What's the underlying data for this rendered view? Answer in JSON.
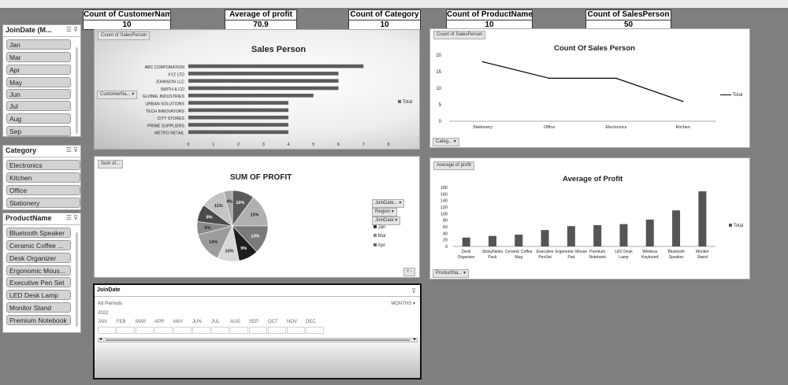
{
  "stats": [
    {
      "label": "Count of CustomerName",
      "value": "10"
    },
    {
      "label": "Average of profit",
      "value": "70.9"
    },
    {
      "label": "Count of Category",
      "value": "10"
    },
    {
      "label": "Count of ProductName",
      "value": "10"
    },
    {
      "label": "Count of SalesPerson",
      "value": "50"
    }
  ],
  "slicers": {
    "joindate": {
      "title": "JoinDate (M...",
      "items": [
        "Jan",
        "Mar",
        "Apr",
        "May",
        "Jun",
        "Jul",
        "Aug",
        "Sep"
      ]
    },
    "category": {
      "title": "Category",
      "items": [
        "Electronics",
        "Kitchen",
        "Office",
        "Stationery"
      ]
    },
    "product": {
      "title": "ProductName",
      "items": [
        "Bluetooth Speaker",
        "Ceramic Coffee ...",
        "Desk Organizer",
        "Ergonomic Mous...",
        "Executive Pen Set",
        "LED Desk Lamp",
        "Monitor Stand",
        "Premium Notebook"
      ]
    }
  },
  "timeline": {
    "title": "JoinDate",
    "periods": "All Periods",
    "level": "MONTHS",
    "year": "2022",
    "months": [
      "JAN",
      "FEB",
      "MAR",
      "APR",
      "MAY",
      "JUN",
      "JUL",
      "AUG",
      "SEP",
      "OCT",
      "NOV",
      "DEC"
    ]
  },
  "panels": {
    "sales_person": {
      "tag": "Count of SalesPerson",
      "filter": "CustomerNa...",
      "legend": "Total"
    },
    "count_sales": {
      "tag": "Count of SalesPerson",
      "filter": "Categ...",
      "legend": "Total"
    },
    "profit_pie": {
      "tag": "Sum of...",
      "filters": [
        "JoinDate...",
        "Region",
        "JoinDate"
      ],
      "legend": [
        "Jan",
        "Mar",
        "Apr"
      ],
      "zoom": "+ -"
    },
    "avg_profit": {
      "tag": "Average of profit",
      "filter": "ProductNa...",
      "legend": "Total"
    }
  },
  "chart_data": [
    {
      "type": "bar",
      "title": "Sales Person",
      "categories": [
        "ABC CORPORATION",
        "XYZ LTD",
        "JOHNSON LLC",
        "SMITH & CO",
        "GLOBAL INDUSTRIES",
        "URBAN SOLUTIONS",
        "TECH INNOVATORS",
        "CITY STORES",
        "PRIME SUPPLIERS",
        "METRO RETAIL"
      ],
      "values": [
        7,
        6,
        6,
        6,
        5,
        4,
        4,
        4,
        4,
        4
      ],
      "xticks": [
        "0",
        "1",
        "2",
        "3",
        "4",
        "5",
        "6",
        "7",
        "8"
      ],
      "xlim": [
        0,
        8
      ],
      "series": [
        {
          "name": "Total"
        }
      ],
      "orientation": "horizontal"
    },
    {
      "type": "line",
      "title": "Count Of Sales Person",
      "categories": [
        "Stationery",
        "Office",
        "Electronics",
        "Kitchen"
      ],
      "values": [
        18,
        13,
        13,
        6
      ],
      "yticks": [
        "0",
        "5",
        "10",
        "15",
        "20"
      ],
      "ylim": [
        0,
        20
      ],
      "series": [
        {
          "name": "Total"
        }
      ]
    },
    {
      "type": "pie",
      "title": "SUM OF PROFIT",
      "labels": [
        "10%",
        "15%",
        "13%",
        "9%",
        "10%",
        "14%",
        "6%",
        "8%",
        "11%",
        "4%"
      ],
      "values": [
        10,
        15,
        13,
        9,
        10,
        14,
        6,
        8,
        11,
        4
      ],
      "colors": [
        "#5a5a5a",
        "#b0b0b0",
        "#7a7a7a",
        "#1e1e1e",
        "#d8d8d8",
        "#9c9c9c",
        "#8a8a8a",
        "#4a4a4a",
        "#c4c4c4",
        "#a8a8a8"
      ]
    },
    {
      "type": "bar",
      "title": "Average of Profit",
      "categories": [
        "Desk Organizer",
        "StickyNotes Pack",
        "Ceramic Coffee Mug",
        "Executive PenSet",
        "Ergonomic Mouse Pad",
        "Premium Notebook",
        "LED Desk Lamp",
        "Wireless Keyboard",
        "Bluetooth Speaker",
        "Monitor Stand"
      ],
      "values": [
        27,
        32,
        36,
        50,
        62,
        65,
        68,
        82,
        110,
        168
      ],
      "yticks": [
        "0",
        "20",
        "40",
        "60",
        "80",
        "100",
        "120",
        "140",
        "160",
        "180"
      ],
      "ylim": [
        0,
        180
      ],
      "series": [
        {
          "name": "Total"
        }
      ]
    }
  ]
}
